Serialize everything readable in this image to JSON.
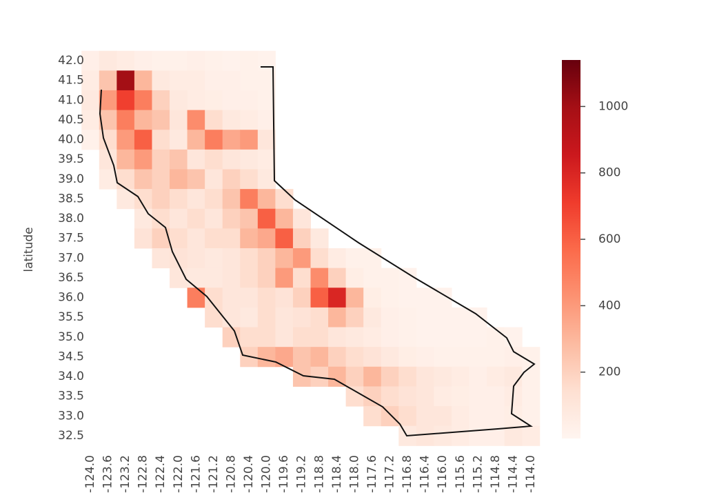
{
  "chart_data": {
    "type": "heatmap",
    "ylabel": "latitude",
    "xticks": [
      {
        "value": -124.0,
        "label": "-124.0"
      },
      {
        "value": -123.6,
        "label": "-123.6"
      },
      {
        "value": -123.2,
        "label": "-123.2"
      },
      {
        "value": -122.8,
        "label": "-122.8"
      },
      {
        "value": -122.4,
        "label": "-122.4"
      },
      {
        "value": -122.0,
        "label": "-122.0"
      },
      {
        "value": -121.6,
        "label": "-121.6"
      },
      {
        "value": -121.2,
        "label": "-121.2"
      },
      {
        "value": -120.8,
        "label": "-120.8"
      },
      {
        "value": -120.4,
        "label": "-120.4"
      },
      {
        "value": -120.0,
        "label": "-120.0"
      },
      {
        "value": -119.6,
        "label": "-119.6"
      },
      {
        "value": -119.2,
        "label": "-119.2"
      },
      {
        "value": -118.8,
        "label": "-118.8"
      },
      {
        "value": -118.4,
        "label": "-118.4"
      },
      {
        "value": -118.0,
        "label": "-118.0"
      },
      {
        "value": -117.6,
        "label": "-117.6"
      },
      {
        "value": -117.2,
        "label": "-117.2"
      },
      {
        "value": -116.8,
        "label": "-116.8"
      },
      {
        "value": -116.4,
        "label": "-116.4"
      },
      {
        "value": -116.0,
        "label": "-116.0"
      },
      {
        "value": -115.6,
        "label": "-115.6"
      },
      {
        "value": -115.2,
        "label": "-115.2"
      },
      {
        "value": -114.8,
        "label": "-114.8"
      },
      {
        "value": -114.4,
        "label": "-114.4"
      },
      {
        "value": -114.0,
        "label": "-114.0"
      }
    ],
    "yticks": [
      {
        "value": 42.0,
        "label": "42.0"
      },
      {
        "value": 41.5,
        "label": "41.5"
      },
      {
        "value": 41.0,
        "label": "41.0"
      },
      {
        "value": 40.5,
        "label": "40.5"
      },
      {
        "value": 40.0,
        "label": "40.0"
      },
      {
        "value": 39.5,
        "label": "39.5"
      },
      {
        "value": 39.0,
        "label": "39.0"
      },
      {
        "value": 38.5,
        "label": "38.5"
      },
      {
        "value": 38.0,
        "label": "38.0"
      },
      {
        "value": 37.5,
        "label": "37.5"
      },
      {
        "value": 37.0,
        "label": "37.0"
      },
      {
        "value": 36.5,
        "label": "36.5"
      },
      {
        "value": 36.0,
        "label": "36.0"
      },
      {
        "value": 35.5,
        "label": "35.5"
      },
      {
        "value": 35.0,
        "label": "35.0"
      },
      {
        "value": 34.5,
        "label": "34.5"
      },
      {
        "value": 34.0,
        "label": "34.0"
      },
      {
        "value": 33.5,
        "label": "33.5"
      },
      {
        "value": 33.0,
        "label": "33.0"
      },
      {
        "value": 32.5,
        "label": "32.5"
      }
    ],
    "values": [
      [
        40,
        80,
        60,
        40,
        30,
        30,
        40,
        30,
        20,
        30,
        20,
        null,
        null,
        null,
        null,
        null,
        null,
        null,
        null,
        null,
        null,
        null,
        null,
        null,
        null,
        null
      ],
      [
        60,
        250,
        1000,
        300,
        80,
        60,
        60,
        40,
        40,
        30,
        30,
        null,
        null,
        null,
        null,
        null,
        null,
        null,
        null,
        null,
        null,
        null,
        null,
        null,
        null,
        null
      ],
      [
        80,
        400,
        700,
        500,
        200,
        80,
        60,
        50,
        40,
        40,
        30,
        null,
        null,
        null,
        null,
        null,
        null,
        null,
        null,
        null,
        null,
        null,
        null,
        null,
        null,
        null
      ],
      [
        60,
        250,
        500,
        300,
        250,
        100,
        450,
        150,
        80,
        60,
        40,
        null,
        null,
        null,
        null,
        null,
        null,
        null,
        null,
        null,
        null,
        null,
        null,
        null,
        null,
        null
      ],
      [
        30,
        150,
        400,
        600,
        150,
        80,
        300,
        500,
        350,
        400,
        100,
        null,
        null,
        null,
        null,
        null,
        null,
        null,
        null,
        null,
        null,
        null,
        null,
        null,
        null,
        null
      ],
      [
        null,
        100,
        300,
        400,
        200,
        250,
        100,
        150,
        100,
        80,
        60,
        null,
        null,
        null,
        null,
        null,
        null,
        null,
        null,
        null,
        null,
        null,
        null,
        null,
        null,
        null
      ],
      [
        null,
        60,
        150,
        250,
        200,
        300,
        250,
        100,
        200,
        150,
        80,
        null,
        null,
        null,
        null,
        null,
        null,
        null,
        null,
        null,
        null,
        null,
        null,
        null,
        null,
        null
      ],
      [
        null,
        null,
        80,
        150,
        200,
        150,
        100,
        150,
        250,
        500,
        300,
        150,
        null,
        null,
        null,
        null,
        null,
        null,
        null,
        null,
        null,
        null,
        null,
        null,
        null,
        null
      ],
      [
        null,
        null,
        null,
        80,
        150,
        100,
        150,
        100,
        200,
        250,
        600,
        300,
        100,
        null,
        null,
        null,
        null,
        null,
        null,
        null,
        null,
        null,
        null,
        null,
        null,
        null
      ],
      [
        null,
        null,
        null,
        120,
        200,
        150,
        100,
        150,
        150,
        300,
        350,
        600,
        200,
        80,
        null,
        null,
        null,
        null,
        null,
        null,
        null,
        null,
        null,
        null,
        null,
        null
      ],
      [
        null,
        null,
        null,
        null,
        100,
        120,
        100,
        80,
        100,
        150,
        200,
        300,
        400,
        150,
        60,
        30,
        30,
        null,
        null,
        null,
        null,
        null,
        null,
        null,
        null,
        null
      ],
      [
        null,
        null,
        null,
        null,
        null,
        100,
        80,
        80,
        100,
        150,
        200,
        400,
        150,
        450,
        200,
        50,
        30,
        30,
        20,
        null,
        null,
        null,
        null,
        null,
        null,
        null
      ],
      [
        null,
        null,
        null,
        null,
        null,
        null,
        500,
        150,
        100,
        100,
        150,
        120,
        200,
        600,
        800,
        300,
        50,
        30,
        20,
        20,
        20,
        null,
        null,
        null,
        null,
        null
      ],
      [
        null,
        null,
        null,
        null,
        null,
        null,
        null,
        150,
        100,
        80,
        150,
        100,
        120,
        150,
        300,
        200,
        80,
        40,
        30,
        20,
        20,
        20,
        20,
        null,
        null,
        null
      ],
      [
        null,
        null,
        null,
        null,
        null,
        null,
        null,
        null,
        200,
        150,
        150,
        100,
        150,
        150,
        100,
        80,
        60,
        40,
        30,
        20,
        20,
        20,
        20,
        30,
        20,
        null
      ],
      [
        null,
        null,
        null,
        null,
        null,
        null,
        null,
        null,
        null,
        200,
        300,
        350,
        250,
        300,
        200,
        150,
        120,
        80,
        50,
        40,
        30,
        30,
        30,
        30,
        40,
        30
      ],
      [
        null,
        null,
        null,
        null,
        null,
        null,
        null,
        null,
        null,
        null,
        null,
        null,
        250,
        200,
        300,
        200,
        300,
        200,
        150,
        100,
        80,
        60,
        40,
        60,
        80,
        30
      ],
      [
        null,
        null,
        null,
        null,
        null,
        null,
        null,
        null,
        null,
        null,
        null,
        null,
        null,
        null,
        null,
        150,
        200,
        150,
        120,
        100,
        60,
        50,
        40,
        40,
        60,
        30
      ],
      [
        null,
        null,
        null,
        null,
        null,
        null,
        null,
        null,
        null,
        null,
        null,
        null,
        null,
        null,
        null,
        null,
        150,
        200,
        150,
        100,
        100,
        60,
        40,
        40,
        50,
        30
      ],
      [
        null,
        null,
        null,
        null,
        null,
        null,
        null,
        null,
        null,
        null,
        null,
        null,
        null,
        null,
        null,
        null,
        null,
        null,
        80,
        100,
        80,
        60,
        40,
        40,
        80,
        60
      ]
    ],
    "clim": [
      0,
      1140
    ],
    "cticks": [
      200,
      400,
      600,
      800,
      1000
    ],
    "colormap": [
      "#fff5f0",
      "#fee0d2",
      "#fcbba1",
      "#fc9272",
      "#fb6a4a",
      "#ef3b2c",
      "#cb181d",
      "#a50f15",
      "#67000d"
    ]
  }
}
